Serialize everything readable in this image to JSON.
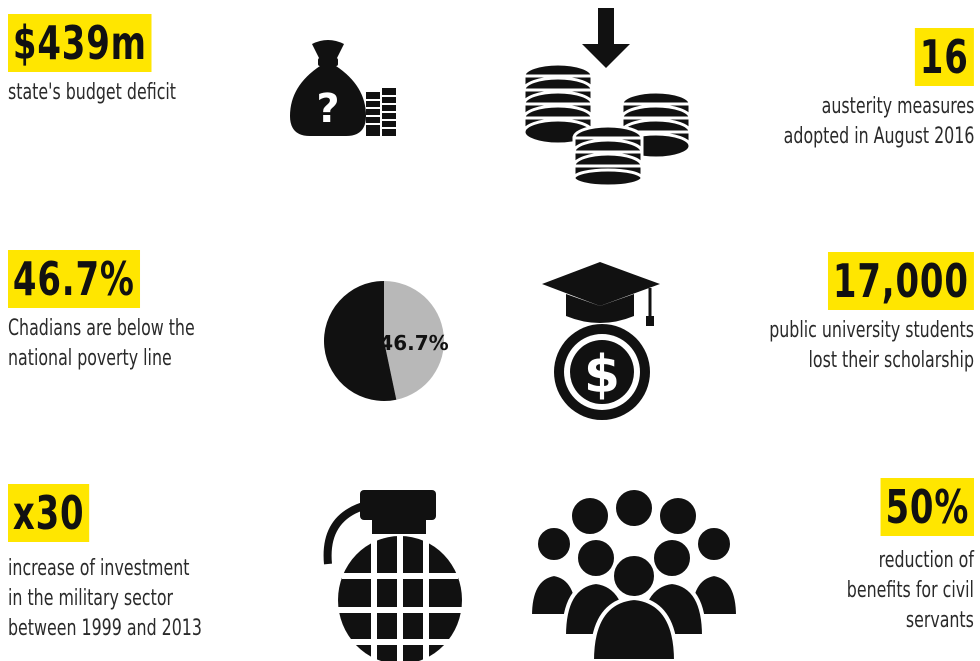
{
  "stats": [
    {
      "value": "$439m",
      "lines": [
        "state's budget deficit"
      ]
    },
    {
      "value": "16",
      "lines": [
        "austerity measures",
        "adopted in August 2016"
      ]
    },
    {
      "value": "46.7%",
      "lines": [
        "Chadians are below the",
        "national poverty line"
      ]
    },
    {
      "value": "17,000",
      "lines": [
        "public university students",
        "lost their scholarship"
      ]
    },
    {
      "value": "x30",
      "lines": [
        "increase of investment",
        "in the military sector",
        "between 1999 and 2013"
      ]
    },
    {
      "value": "50%",
      "lines": [
        "reduction of",
        "benefits for civil",
        "servants"
      ]
    }
  ],
  "pie": {
    "label": "46.7%",
    "value": 46.7
  },
  "icons": [
    "money-bag-icon",
    "coin-stacks-icon",
    "pie-chart-icon",
    "graduation-dollar-icon",
    "grenade-icon",
    "crowd-icon"
  ],
  "colors": {
    "highlight": "#ffe600",
    "icon": "#111111",
    "pie_light": "#b8b8b8"
  }
}
